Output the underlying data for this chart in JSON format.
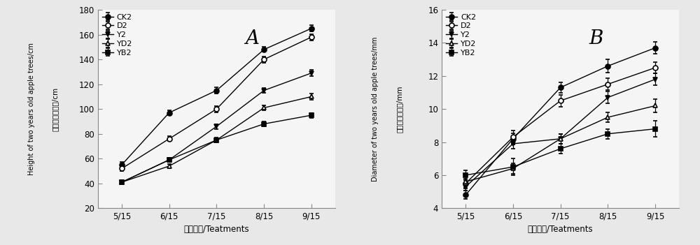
{
  "x_labels": [
    "5/15",
    "6/15",
    "7/15",
    "8/15",
    "9/15"
  ],
  "x_vals": [
    0,
    1,
    2,
    3,
    4
  ],
  "A_title": "A",
  "A_ylabel_cn": "二年生植株株高/cm",
  "A_ylabel_en": "Height of two years old apple trees/cm",
  "A_xlabel": "不同处理/Teatments",
  "A_ylim": [
    20,
    180
  ],
  "A_yticks": [
    20,
    40,
    60,
    80,
    100,
    120,
    140,
    160,
    180
  ],
  "A_series": {
    "CK2": {
      "y": [
        55,
        97,
        115,
        148,
        165
      ],
      "yerr": [
        2.5,
        2.0,
        2.5,
        2.0,
        2.5
      ],
      "marker": "o",
      "fillstyle": "full",
      "color": "black",
      "linestyle": "-"
    },
    "D2": {
      "y": [
        52,
        76,
        100,
        140,
        158
      ],
      "yerr": [
        2.0,
        2.0,
        2.5,
        2.5,
        2.5
      ],
      "marker": "o",
      "fillstyle": "none",
      "color": "black",
      "linestyle": "-"
    },
    "Y2": {
      "y": [
        41,
        59,
        86,
        115,
        129
      ],
      "yerr": [
        1.5,
        1.5,
        2.0,
        2.0,
        2.5
      ],
      "marker": "v",
      "fillstyle": "full",
      "color": "black",
      "linestyle": "-"
    },
    "YD2": {
      "y": [
        41,
        54,
        75,
        101,
        110
      ],
      "yerr": [
        1.5,
        1.5,
        2.0,
        2.0,
        2.5
      ],
      "marker": "^",
      "fillstyle": "none",
      "color": "black",
      "linestyle": "-"
    },
    "YB2": {
      "y": [
        41,
        59,
        75,
        88,
        95
      ],
      "yerr": [
        1.5,
        1.5,
        1.5,
        2.0,
        2.0
      ],
      "marker": "s",
      "fillstyle": "full",
      "color": "black",
      "linestyle": "-"
    }
  },
  "B_title": "B",
  "B_ylabel_cn": "二年生植株径粗/mm",
  "B_ylabel_en": "Diameter of two years old apple trees/mm",
  "B_xlabel": "不同处理/Teatments",
  "B_ylim": [
    4,
    16
  ],
  "B_yticks": [
    4,
    6,
    8,
    10,
    12,
    14,
    16
  ],
  "B_series": {
    "CK2": {
      "y": [
        4.8,
        8.2,
        11.3,
        12.6,
        13.7
      ],
      "yerr": [
        0.25,
        0.35,
        0.3,
        0.4,
        0.35
      ],
      "marker": "o",
      "fillstyle": "full",
      "color": "black",
      "linestyle": "-"
    },
    "D2": {
      "y": [
        5.5,
        8.3,
        10.5,
        11.5,
        12.5
      ],
      "yerr": [
        0.3,
        0.4,
        0.35,
        0.35,
        0.35
      ],
      "marker": "o",
      "fillstyle": "none",
      "color": "black",
      "linestyle": "-"
    },
    "Y2": {
      "y": [
        5.3,
        7.9,
        8.2,
        10.7,
        11.8
      ],
      "yerr": [
        0.25,
        0.3,
        0.3,
        0.35,
        0.35
      ],
      "marker": "v",
      "fillstyle": "full",
      "color": "black",
      "linestyle": "-"
    },
    "YD2": {
      "y": [
        5.6,
        6.4,
        8.2,
        9.5,
        10.2
      ],
      "yerr": [
        0.35,
        0.3,
        0.3,
        0.3,
        0.4
      ],
      "marker": "^",
      "fillstyle": "none",
      "color": "black",
      "linestyle": "-"
    },
    "YB2": {
      "y": [
        6.0,
        6.5,
        7.6,
        8.5,
        8.8
      ],
      "yerr": [
        0.3,
        0.5,
        0.3,
        0.3,
        0.5
      ],
      "marker": "s",
      "fillstyle": "full",
      "color": "black",
      "linestyle": "-"
    }
  },
  "legend_order": [
    "CK2",
    "D2",
    "Y2",
    "YD2",
    "YB2"
  ],
  "bg_color": "#e8e8e8",
  "plot_bg_color": "#f5f5f5"
}
